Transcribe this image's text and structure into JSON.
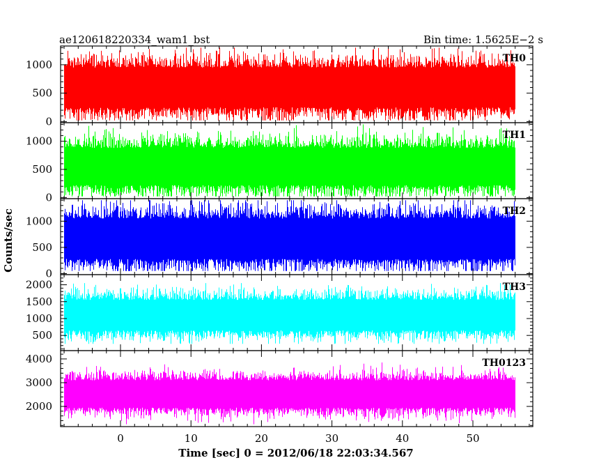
{
  "chart_data": {
    "type": "line",
    "title_left": "ae120618220334_wam1_bst",
    "title_right": "Bin time: 1.5625E−2 s",
    "ylabel": "Counts/sec",
    "xlabel": "Time [sec] 0 = 2012/06/18 22:03:34.567",
    "x_range": [
      -8.5,
      58.5
    ],
    "data_x_range": [
      -8,
      56
    ],
    "x_ticks": [
      0,
      10,
      20,
      30,
      40,
      50
    ],
    "x_tick_labels": [
      "0",
      "10",
      "20",
      "30",
      "40",
      "50"
    ],
    "x_minor_step": 2,
    "panels": [
      {
        "label": "TH0",
        "color": "#ff0000",
        "ylim": [
          -20,
          1330
        ],
        "y_ticks": [
          0,
          500,
          1000
        ],
        "y_tick_labels": [
          "0",
          "500",
          "1000"
        ],
        "y_minor_step": 100,
        "mean": 600,
        "band_low": 250,
        "band_high": 950,
        "min": 20,
        "max": 1300
      },
      {
        "label": "TH1",
        "color": "#00ff00",
        "ylim": [
          -20,
          1330
        ],
        "y_ticks": [
          0,
          500,
          1000
        ],
        "y_tick_labels": [
          "0",
          "500",
          "1000"
        ],
        "y_minor_step": 100,
        "mean": 550,
        "band_low": 220,
        "band_high": 880,
        "min": 20,
        "max": 1300
      },
      {
        "label": "TH2",
        "color": "#0000ff",
        "ylim": [
          -20,
          1430
        ],
        "y_ticks": [
          0,
          500,
          1000
        ],
        "y_tick_labels": [
          "0",
          "500",
          "1000"
        ],
        "y_minor_step": 100,
        "mean": 650,
        "band_low": 280,
        "band_high": 1050,
        "min": 50,
        "max": 1400
      },
      {
        "label": "TH3",
        "color": "#00ffff",
        "ylim": [
          50,
          2300
        ],
        "y_ticks": [
          500,
          1000,
          1500,
          2000
        ],
        "y_tick_labels": [
          "500",
          "1000",
          "1500",
          "2000"
        ],
        "y_minor_step": 100,
        "mean": 1150,
        "band_low": 650,
        "band_high": 1550,
        "min": 250,
        "max": 2050
      },
      {
        "label": "TH0123",
        "color": "#ff00ff",
        "ylim": [
          1150,
          4350
        ],
        "y_ticks": [
          2000,
          3000,
          4000
        ],
        "y_tick_labels": [
          "2000",
          "3000",
          "4000"
        ],
        "y_minor_step": 200,
        "mean": 2600,
        "band_low": 1950,
        "band_high": 3100,
        "min": 1250,
        "max": 4250
      }
    ]
  }
}
